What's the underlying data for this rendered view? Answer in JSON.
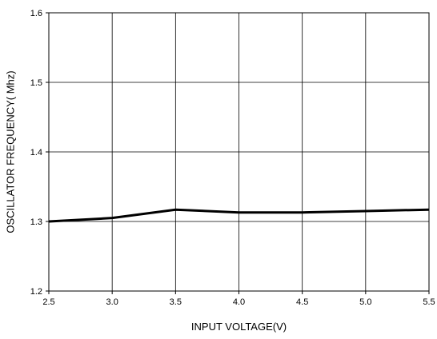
{
  "chart_data": {
    "type": "line",
    "xlabel": "INPUT VOLTAGE(V)",
    "ylabel": "OSCILLATOR FREQUENCY( Mhz)",
    "xlim": [
      2.5,
      5.5
    ],
    "ylim": [
      1.2,
      1.6
    ],
    "grid": true,
    "x_ticks": [
      "2.5",
      "3.0",
      "3.5",
      "4.0",
      "4.5",
      "5.0",
      "5.5"
    ],
    "y_ticks": [
      "1.2",
      "1.3",
      "1.4",
      "1.5",
      "1.6"
    ],
    "series": [
      {
        "x": [
          2.5,
          3.0,
          3.5,
          4.0,
          4.5,
          5.0,
          5.5
        ],
        "y": [
          1.3,
          1.305,
          1.317,
          1.313,
          1.313,
          1.315,
          1.317
        ],
        "color": "#000000"
      }
    ]
  }
}
